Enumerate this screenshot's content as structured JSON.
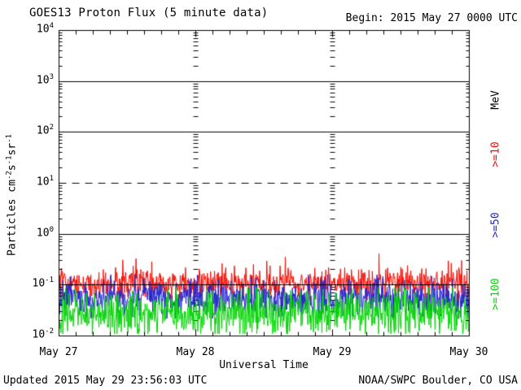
{
  "header": {
    "title": "GOES13 Proton Flux (5 minute data)",
    "begin_label": "Begin: 2015 May 27 0000 UTC"
  },
  "footer": {
    "updated": "Updated 2015 May 29 23:56:03 UTC",
    "source": "NOAA/SWPC Boulder, CO USA"
  },
  "axes": {
    "x_label": "Universal Time",
    "x_ticks": [
      "May 27",
      "May 28",
      "May 29",
      "May 30"
    ],
    "y_base": "10",
    "y_exponents": [
      "4",
      "3",
      "2",
      "1",
      "0",
      "-1",
      "-2"
    ],
    "y_label_parts": [
      {
        "t": "Particles cm",
        "sup": false
      },
      {
        "t": "-2",
        "sup": true
      },
      {
        "t": "s",
        "sup": false
      },
      {
        "t": "-1",
        "sup": true
      },
      {
        "t": "sr",
        "sup": false
      },
      {
        "t": "-1",
        "sup": true
      }
    ],
    "right_unit": "MeV"
  },
  "legend": [
    {
      "label": ">=10",
      "color": "#f40b00"
    },
    {
      "label": ">=50",
      "color": "#2222cc"
    },
    {
      "label": ">=100",
      "color": "#00d400"
    }
  ],
  "chart_data": {
    "type": "line",
    "title": "GOES13 Proton Flux (5 minute data)",
    "xlabel": "Universal Time",
    "ylabel": "Particles cm-2 s-1 sr-1",
    "x_start": "2015 May 27 0000 UTC",
    "x_end": "2015 May 30 0000 UTC",
    "x_tick_labels": [
      "May 27",
      "May 28",
      "May 29",
      "May 30"
    ],
    "cadence_minutes": 5,
    "points_per_series": 864,
    "y_scale": "log10",
    "ylim": [
      0.01,
      10000
    ],
    "grid": {
      "solid_horizontal_at": [
        1000,
        100,
        1,
        0.1
      ],
      "dashed_threshold_at": 10,
      "vertical_day_ticklines_at": [
        "May 28",
        "May 29"
      ],
      "x_minor_tick_hours": 3
    },
    "series": [
      {
        "name": ">=10 MeV",
        "color": "#f40b00",
        "typical": 0.11,
        "observed_min": 0.05,
        "observed_max": 0.4,
        "log10_sigma": 0.15,
        "clip_min": 0.05,
        "clip_max": 0.42,
        "spike_prob": 0.03,
        "spike_max_factor": 2.4,
        "seed": 101
      },
      {
        "name": ">=50 MeV",
        "color": "#2222cc",
        "typical": 0.055,
        "observed_min": 0.022,
        "observed_max": 0.16,
        "log10_sigma": 0.18,
        "clip_min": 0.022,
        "clip_max": 0.16,
        "spike_prob": 0.0,
        "spike_max_factor": 1.0,
        "seed": 202
      },
      {
        "name": ">=100 MeV",
        "color": "#00d400",
        "typical": 0.028,
        "observed_min": 0.011,
        "observed_max": 0.09,
        "log10_sigma": 0.21,
        "clip_min": 0.011,
        "clip_max": 0.09,
        "spike_prob": 0.0,
        "spike_max_factor": 1.0,
        "seed": 303
      }
    ]
  }
}
